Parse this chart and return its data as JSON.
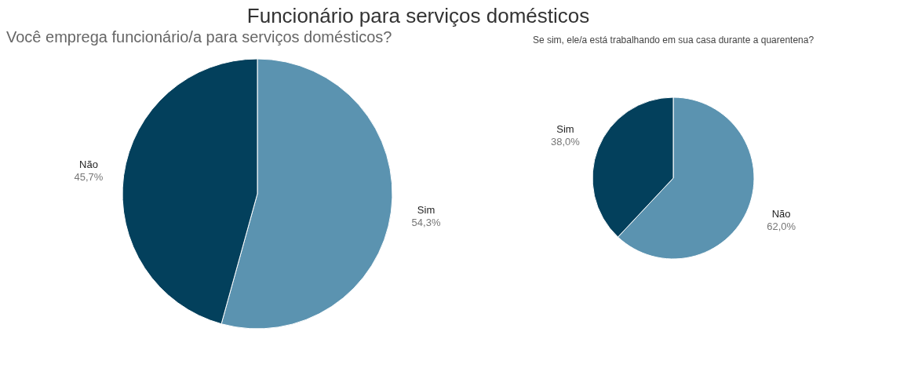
{
  "chart_data": [
    {
      "type": "pie",
      "title": "Funcionário para serviços domésticos",
      "subtitle": "Você emprega funcionário/a para serviços domésticos?",
      "categories": [
        "Sim",
        "Não"
      ],
      "values": [
        54.3,
        45.7
      ],
      "colors": [
        "#5b93b0",
        "#03405c"
      ],
      "value_labels": [
        "54,3%",
        "45,7%"
      ],
      "legend": false
    },
    {
      "type": "pie",
      "title": "Se sim, ele/a está trabalhando em sua casa durante a quarentena?",
      "categories": [
        "Não",
        "Sim"
      ],
      "values": [
        62.0,
        38.0
      ],
      "colors": [
        "#5b93b0",
        "#03405c"
      ],
      "value_labels": [
        "62,0%",
        "38,0%"
      ],
      "legend": false
    }
  ]
}
